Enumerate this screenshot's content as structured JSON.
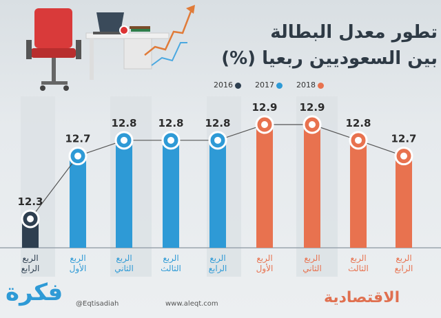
{
  "chart_data": {
    "type": "bar",
    "title_line1": "تطور معدل البطالة",
    "title_line2": "بين السعوديين ربعيا (%)",
    "legend": [
      {
        "label": "2016",
        "color": "#2e3f50"
      },
      {
        "label": "2017",
        "color": "#2e9ad6"
      },
      {
        "label": "2018",
        "color": "#e8724f"
      }
    ],
    "categories": [
      {
        "line1": "الربع",
        "line2": "الرابع",
        "year": "2016"
      },
      {
        "line1": "الربع",
        "line2": "الأول",
        "year": "2017"
      },
      {
        "line1": "الربع",
        "line2": "الثاني",
        "year": "2017"
      },
      {
        "line1": "الربع",
        "line2": "الثالث",
        "year": "2017"
      },
      {
        "line1": "الربع",
        "line2": "الرابع",
        "year": "2017"
      },
      {
        "line1": "الربع",
        "line2": "الأول",
        "year": "2018"
      },
      {
        "line1": "الربع",
        "line2": "الثاني",
        "year": "2018"
      },
      {
        "line1": "الربع",
        "line2": "الثالث",
        "year": "2018"
      },
      {
        "line1": "الربع",
        "line2": "الرابع",
        "year": "2018"
      }
    ],
    "values": [
      12.3,
      12.7,
      12.8,
      12.8,
      12.8,
      12.9,
      12.9,
      12.8,
      12.7
    ],
    "value_labels": [
      "12.3",
      "12.7",
      "12.8",
      "12.8",
      "12.8",
      "12.9",
      "12.9",
      "12.8",
      "12.7"
    ]
  },
  "footer": {
    "twitter": "@Eqtisadiah",
    "website": "www.aleqt.com"
  }
}
